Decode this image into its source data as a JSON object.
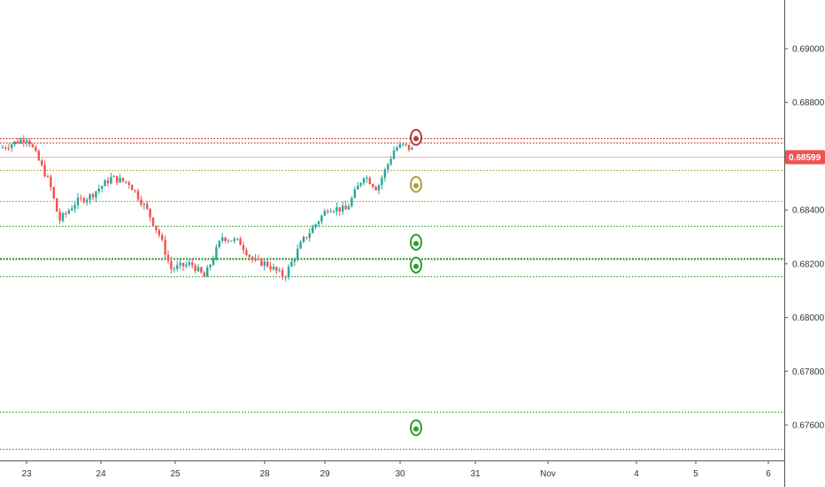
{
  "chart_data": {
    "type": "candlestick",
    "instrument_price_scale": "right",
    "ylim": [
      0.675,
      0.6915
    ],
    "y_ticks": [
      "0.69000",
      "0.68800",
      "0.68600",
      "0.68400",
      "0.68200",
      "0.68000",
      "0.67800",
      "0.67600"
    ],
    "y_tick_values": [
      0.69,
      0.688,
      0.686,
      0.684,
      0.682,
      0.68,
      0.678,
      0.676
    ],
    "x_labels": [
      "23",
      "24",
      "25",
      "28",
      "29",
      "30",
      "31",
      "Nov",
      "4",
      "5",
      "6"
    ],
    "last_price_label": "0.68599",
    "last_price": 0.68599,
    "grid": false,
    "horizontal_levels": [
      {
        "price": 0.68668,
        "color": "#c62828",
        "style": "dotted"
      },
      {
        "price": 0.6865,
        "color": "#c62828",
        "style": "dotted"
      },
      {
        "price": 0.68548,
        "color": "#b59b2e",
        "style": "dotted"
      },
      {
        "price": 0.68432,
        "color": "#b59b2e",
        "style": "dotted"
      },
      {
        "price": 0.68342,
        "color": "#2e9e2e",
        "style": "dotted"
      },
      {
        "price": 0.68219,
        "color": "#1f8f1f",
        "style": "dotted-bold"
      },
      {
        "price": 0.68154,
        "color": "#2e9e2e",
        "style": "dotted"
      },
      {
        "price": 0.6765,
        "color": "#2e9e2e",
        "style": "dotted"
      },
      {
        "price": 0.6751,
        "color": "#2e9e2e",
        "style": "dotted"
      }
    ],
    "markers": [
      {
        "price": 0.6867,
        "color": "#b23b3b"
      },
      {
        "price": 0.68495,
        "color": "#a8a23a"
      },
      {
        "price": 0.6828,
        "color": "#2e9e2e"
      },
      {
        "price": 0.68195,
        "color": "#2e9e2e"
      },
      {
        "price": 0.6759,
        "color": "#2e9e2e"
      }
    ],
    "colors": {
      "up": "#26a69a",
      "down": "#ef5350",
      "axis_tag": "#ef5350"
    }
  }
}
